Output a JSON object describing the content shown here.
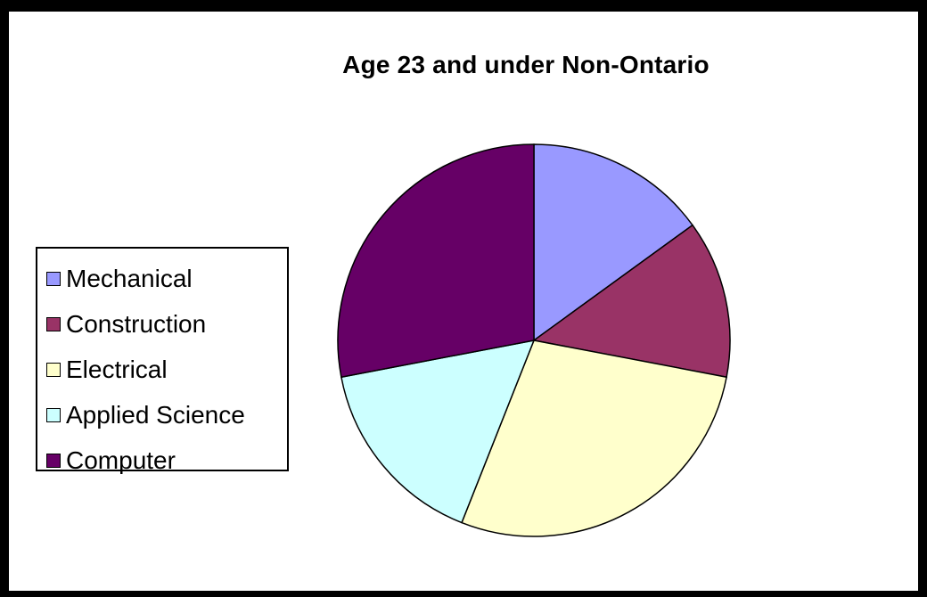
{
  "chart_data": {
    "type": "pie",
    "title": "Age 23 and under Non-Ontario",
    "categories": [
      "Mechanical",
      "Construction",
      "Electrical",
      "Applied Science",
      "Computer"
    ],
    "values": [
      15,
      13,
      28,
      16,
      28
    ],
    "colors": [
      "#9999ff",
      "#993366",
      "#ffffcc",
      "#ccffff",
      "#660066"
    ],
    "start_angle_deg": 0,
    "direction": "clockwise",
    "legend_position": "left"
  }
}
